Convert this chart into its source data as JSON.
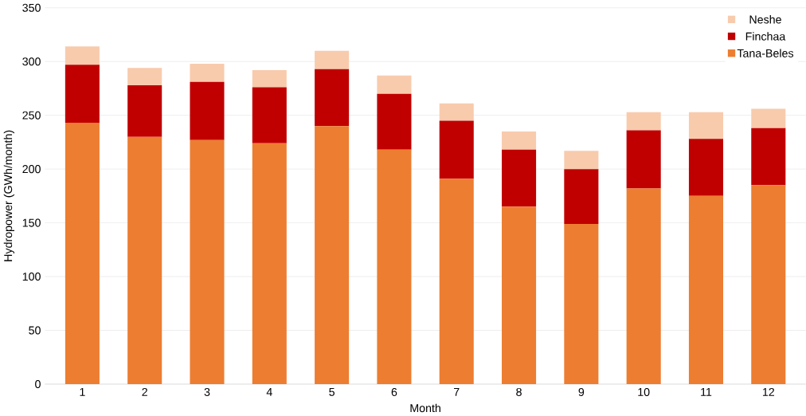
{
  "chart_data": {
    "type": "bar",
    "stacked": true,
    "xlabel": "Month",
    "ylabel": "Hydropower  (GWh/month)",
    "categories": [
      "1",
      "2",
      "3",
      "4",
      "5",
      "6",
      "7",
      "8",
      "9",
      "10",
      "11",
      "12"
    ],
    "series": [
      {
        "name": "Tana-Beles",
        "color": "#ed7d31",
        "values": [
          243,
          230,
          227,
          224,
          240,
          218,
          191,
          165,
          149,
          182,
          175,
          185
        ]
      },
      {
        "name": "Finchaa",
        "color": "#c00000",
        "values": [
          54,
          48,
          54,
          52,
          53,
          52,
          54,
          53,
          51,
          54,
          53,
          53
        ]
      },
      {
        "name": "Neshe",
        "color": "#f8cbad",
        "values": [
          17,
          16,
          17,
          16,
          17,
          17,
          16,
          17,
          17,
          17,
          25,
          18
        ]
      }
    ],
    "ylim": [
      0,
      350
    ],
    "yticks": [
      0,
      50,
      100,
      150,
      200,
      250,
      300,
      350
    ],
    "grid": "y",
    "legend": "top right"
  }
}
